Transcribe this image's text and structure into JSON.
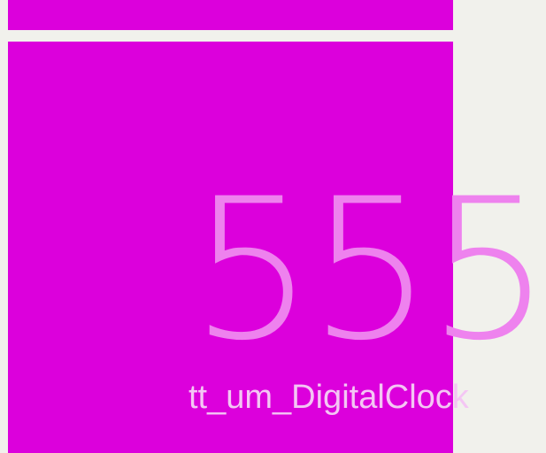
{
  "widget": {
    "value": "555",
    "caption": "tt_um_DigitalClock"
  },
  "colors": {
    "background": "#f1f1ec",
    "panel": "#dc00dc",
    "value_text": "#ee82ee",
    "caption_text": "#f4c6f4"
  }
}
